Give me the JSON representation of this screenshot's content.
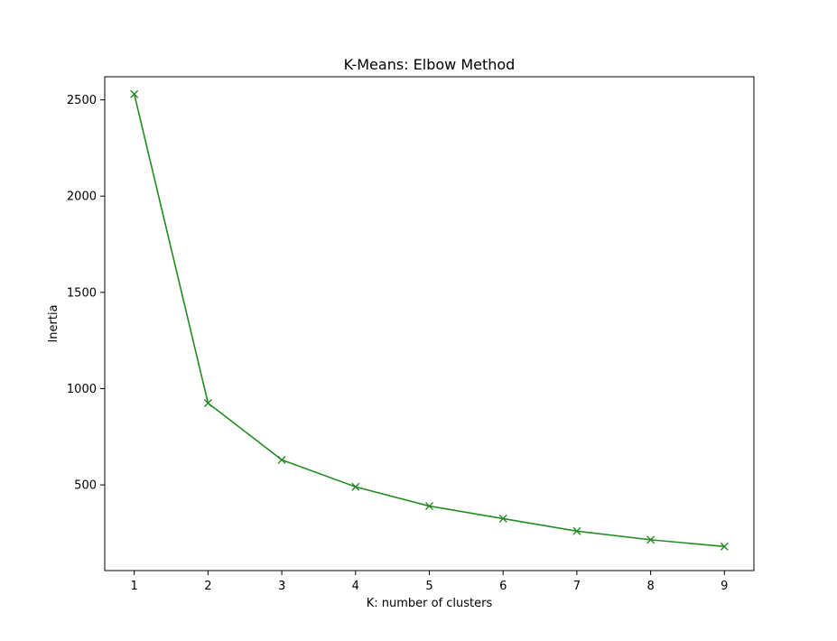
{
  "chart_data": {
    "type": "line",
    "title": "K-Means: Elbow Method",
    "xlabel": "K: number of clusters",
    "ylabel": "Inertia",
    "xlim": [
      0.6,
      9.4
    ],
    "ylim": [
      55,
      2620
    ],
    "x_ticks": [
      1,
      2,
      3,
      4,
      5,
      6,
      7,
      8,
      9
    ],
    "y_ticks": [
      500,
      1000,
      1500,
      2000,
      2500
    ],
    "grid": false,
    "series": [
      {
        "color": "#228b22",
        "marker": "x-marker",
        "x": [
          1,
          2,
          3,
          4,
          5,
          6,
          7,
          8,
          9
        ],
        "y": [
          2530,
          925,
          630,
          490,
          390,
          325,
          260,
          215,
          180
        ]
      }
    ]
  }
}
